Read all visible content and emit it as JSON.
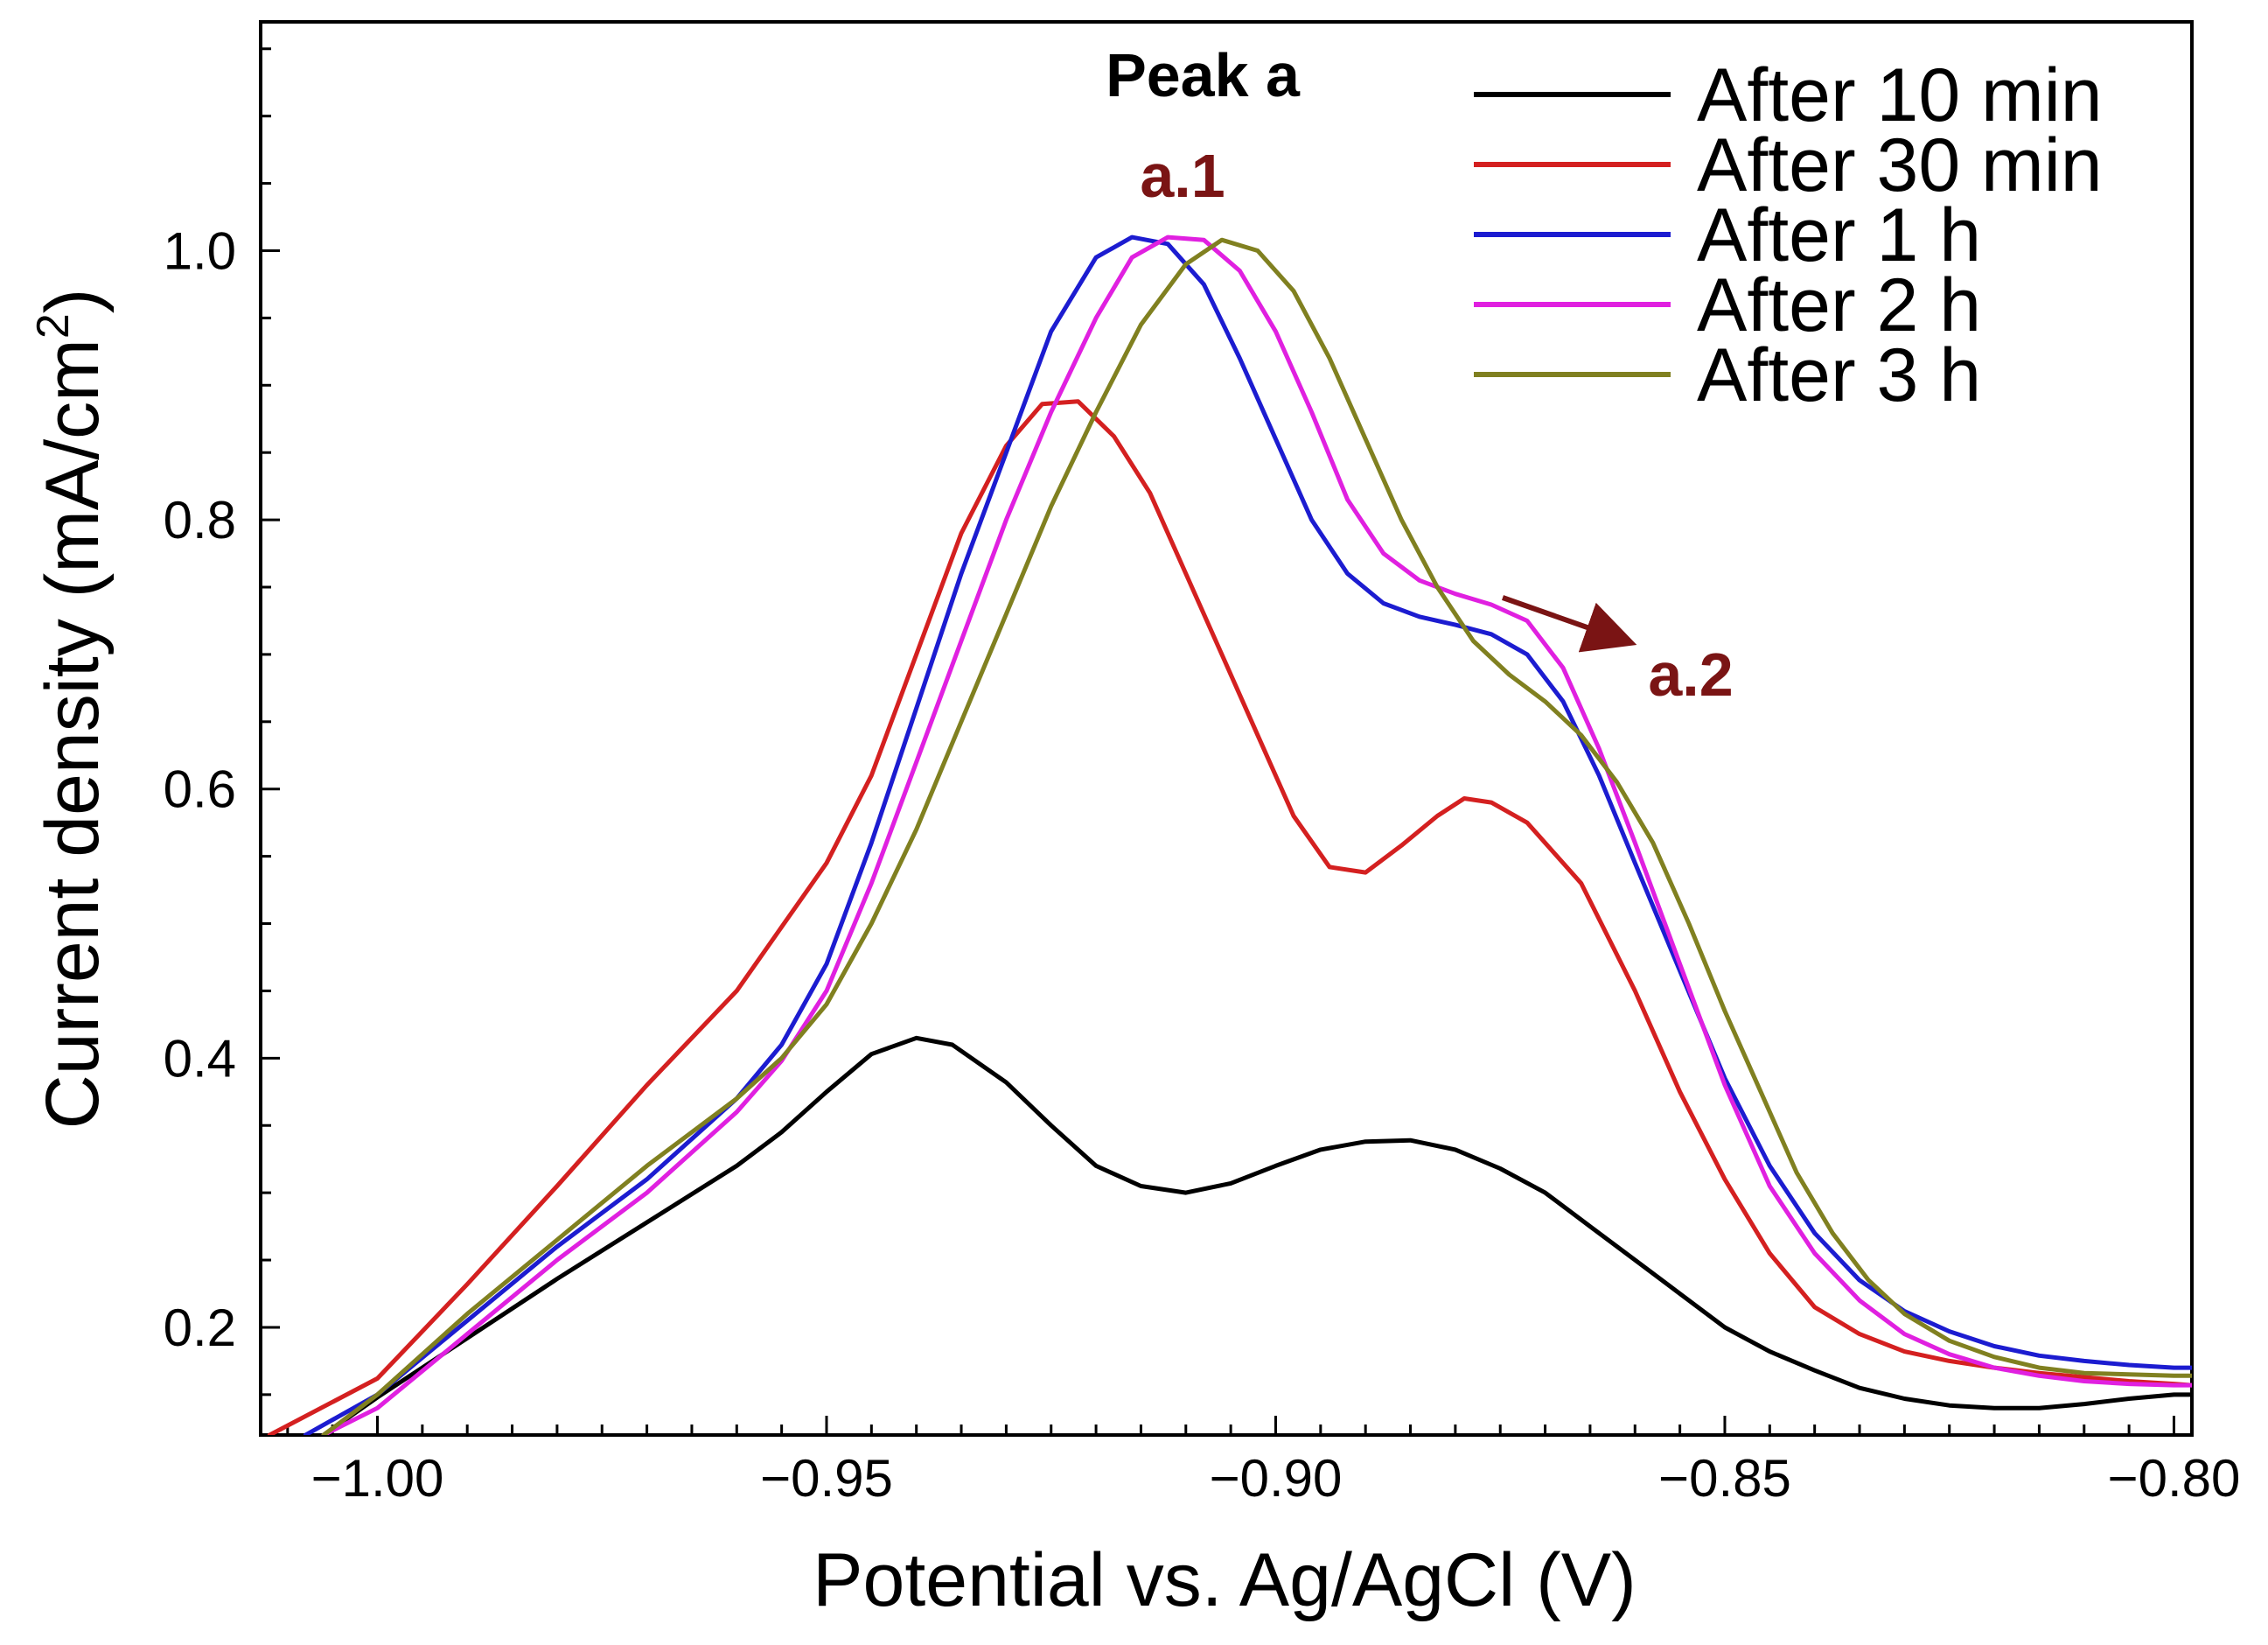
{
  "chart_data": {
    "type": "line",
    "xlabel": "Potential vs. Ag/AgCl (V)",
    "ylabel_main": "Current density (mA/cm",
    "ylabel_sup": "2",
    "ylabel_close": ")",
    "xlim": [
      -1.013,
      -0.798
    ],
    "ylim": [
      0.12,
      1.17
    ],
    "x_ticks": [
      -1.0,
      -0.95,
      -0.9,
      -0.85,
      -0.8
    ],
    "x_tick_labels": [
      "−1.00",
      "−0.95",
      "−0.90",
      "−0.85",
      "−0.80"
    ],
    "y_ticks": [
      0.2,
      0.4,
      0.6,
      0.8,
      1.0
    ],
    "y_tick_labels": [
      "0.2",
      "0.4",
      "0.6",
      "0.8",
      "1.0"
    ],
    "grid": false,
    "legend_position": "top-right",
    "annotations": {
      "peak_label": "Peak a",
      "a1": "a.1",
      "a2": "a.2"
    },
    "series": [
      {
        "name": "After 10 min",
        "color": "#000000",
        "points": [
          [
            -1.006,
            0.12
          ],
          [
            -1.0,
            0.148
          ],
          [
            -0.99,
            0.192
          ],
          [
            -0.98,
            0.236
          ],
          [
            -0.97,
            0.278
          ],
          [
            -0.96,
            0.32
          ],
          [
            -0.955,
            0.345
          ],
          [
            -0.95,
            0.375
          ],
          [
            -0.945,
            0.403
          ],
          [
            -0.94,
            0.415
          ],
          [
            -0.936,
            0.41
          ],
          [
            -0.93,
            0.382
          ],
          [
            -0.925,
            0.35
          ],
          [
            -0.92,
            0.32
          ],
          [
            -0.915,
            0.305
          ],
          [
            -0.91,
            0.3
          ],
          [
            -0.905,
            0.307
          ],
          [
            -0.9,
            0.32
          ],
          [
            -0.895,
            0.332
          ],
          [
            -0.89,
            0.338
          ],
          [
            -0.885,
            0.339
          ],
          [
            -0.88,
            0.332
          ],
          [
            -0.875,
            0.318
          ],
          [
            -0.87,
            0.3
          ],
          [
            -0.865,
            0.275
          ],
          [
            -0.86,
            0.25
          ],
          [
            -0.855,
            0.225
          ],
          [
            -0.85,
            0.2
          ],
          [
            -0.845,
            0.182
          ],
          [
            -0.84,
            0.168
          ],
          [
            -0.835,
            0.155
          ],
          [
            -0.83,
            0.147
          ],
          [
            -0.825,
            0.142
          ],
          [
            -0.82,
            0.14
          ],
          [
            -0.815,
            0.14
          ],
          [
            -0.81,
            0.143
          ],
          [
            -0.805,
            0.147
          ],
          [
            -0.8,
            0.15
          ],
          [
            -0.798,
            0.15
          ]
        ]
      },
      {
        "name": "After 30 min",
        "color": "#d42020",
        "points": [
          [
            -1.012,
            0.12
          ],
          [
            -1.0,
            0.162
          ],
          [
            -0.99,
            0.232
          ],
          [
            -0.98,
            0.305
          ],
          [
            -0.97,
            0.38
          ],
          [
            -0.96,
            0.45
          ],
          [
            -0.95,
            0.545
          ],
          [
            -0.945,
            0.61
          ],
          [
            -0.94,
            0.7
          ],
          [
            -0.935,
            0.79
          ],
          [
            -0.93,
            0.855
          ],
          [
            -0.926,
            0.886
          ],
          [
            -0.922,
            0.888
          ],
          [
            -0.918,
            0.862
          ],
          [
            -0.914,
            0.82
          ],
          [
            -0.91,
            0.76
          ],
          [
            -0.906,
            0.7
          ],
          [
            -0.902,
            0.64
          ],
          [
            -0.898,
            0.58
          ],
          [
            -0.894,
            0.542
          ],
          [
            -0.89,
            0.538
          ],
          [
            -0.886,
            0.558
          ],
          [
            -0.882,
            0.58
          ],
          [
            -0.879,
            0.593
          ],
          [
            -0.876,
            0.59
          ],
          [
            -0.872,
            0.575
          ],
          [
            -0.866,
            0.53
          ],
          [
            -0.86,
            0.45
          ],
          [
            -0.855,
            0.375
          ],
          [
            -0.85,
            0.31
          ],
          [
            -0.845,
            0.255
          ],
          [
            -0.84,
            0.215
          ],
          [
            -0.835,
            0.195
          ],
          [
            -0.83,
            0.182
          ],
          [
            -0.825,
            0.175
          ],
          [
            -0.82,
            0.17
          ],
          [
            -0.815,
            0.166
          ],
          [
            -0.81,
            0.163
          ],
          [
            -0.805,
            0.16
          ],
          [
            -0.8,
            0.158
          ],
          [
            -0.798,
            0.157
          ]
        ]
      },
      {
        "name": "After 1 h",
        "color": "#1c1cd0",
        "points": [
          [
            -1.008,
            0.12
          ],
          [
            -1.0,
            0.15
          ],
          [
            -0.99,
            0.205
          ],
          [
            -0.98,
            0.26
          ],
          [
            -0.97,
            0.31
          ],
          [
            -0.96,
            0.37
          ],
          [
            -0.955,
            0.41
          ],
          [
            -0.95,
            0.47
          ],
          [
            -0.945,
            0.56
          ],
          [
            -0.94,
            0.66
          ],
          [
            -0.935,
            0.76
          ],
          [
            -0.93,
            0.85
          ],
          [
            -0.925,
            0.94
          ],
          [
            -0.92,
            0.995
          ],
          [
            -0.916,
            1.01
          ],
          [
            -0.912,
            1.005
          ],
          [
            -0.908,
            0.975
          ],
          [
            -0.904,
            0.92
          ],
          [
            -0.9,
            0.86
          ],
          [
            -0.896,
            0.8
          ],
          [
            -0.892,
            0.76
          ],
          [
            -0.888,
            0.738
          ],
          [
            -0.884,
            0.728
          ],
          [
            -0.88,
            0.722
          ],
          [
            -0.876,
            0.715
          ],
          [
            -0.872,
            0.7
          ],
          [
            -0.868,
            0.665
          ],
          [
            -0.864,
            0.61
          ],
          [
            -0.86,
            0.545
          ],
          [
            -0.855,
            0.465
          ],
          [
            -0.85,
            0.385
          ],
          [
            -0.845,
            0.32
          ],
          [
            -0.84,
            0.27
          ],
          [
            -0.835,
            0.235
          ],
          [
            -0.83,
            0.212
          ],
          [
            -0.825,
            0.197
          ],
          [
            -0.82,
            0.186
          ],
          [
            -0.815,
            0.179
          ],
          [
            -0.81,
            0.175
          ],
          [
            -0.805,
            0.172
          ],
          [
            -0.8,
            0.17
          ],
          [
            -0.798,
            0.17
          ]
        ]
      },
      {
        "name": "After 2 h",
        "color": "#e020e0",
        "points": [
          [
            -1.006,
            0.12
          ],
          [
            -1.0,
            0.14
          ],
          [
            -0.99,
            0.195
          ],
          [
            -0.98,
            0.25
          ],
          [
            -0.97,
            0.3
          ],
          [
            -0.96,
            0.36
          ],
          [
            -0.955,
            0.398
          ],
          [
            -0.95,
            0.45
          ],
          [
            -0.945,
            0.53
          ],
          [
            -0.94,
            0.62
          ],
          [
            -0.935,
            0.71
          ],
          [
            -0.93,
            0.8
          ],
          [
            -0.925,
            0.88
          ],
          [
            -0.92,
            0.95
          ],
          [
            -0.916,
            0.995
          ],
          [
            -0.912,
            1.01
          ],
          [
            -0.908,
            1.008
          ],
          [
            -0.904,
            0.985
          ],
          [
            -0.9,
            0.94
          ],
          [
            -0.896,
            0.88
          ],
          [
            -0.892,
            0.815
          ],
          [
            -0.888,
            0.775
          ],
          [
            -0.884,
            0.755
          ],
          [
            -0.88,
            0.745
          ],
          [
            -0.876,
            0.737
          ],
          [
            -0.872,
            0.725
          ],
          [
            -0.868,
            0.69
          ],
          [
            -0.864,
            0.63
          ],
          [
            -0.86,
            0.56
          ],
          [
            -0.855,
            0.47
          ],
          [
            -0.85,
            0.38
          ],
          [
            -0.845,
            0.305
          ],
          [
            -0.84,
            0.255
          ],
          [
            -0.835,
            0.22
          ],
          [
            -0.83,
            0.195
          ],
          [
            -0.825,
            0.18
          ],
          [
            -0.82,
            0.17
          ],
          [
            -0.815,
            0.164
          ],
          [
            -0.81,
            0.16
          ],
          [
            -0.805,
            0.158
          ],
          [
            -0.8,
            0.157
          ],
          [
            -0.798,
            0.157
          ]
        ]
      },
      {
        "name": "After 3 h",
        "color": "#808020",
        "points": [
          [
            -1.006,
            0.12
          ],
          [
            -1.0,
            0.15
          ],
          [
            -0.99,
            0.21
          ],
          [
            -0.98,
            0.265
          ],
          [
            -0.97,
            0.32
          ],
          [
            -0.96,
            0.37
          ],
          [
            -0.955,
            0.4
          ],
          [
            -0.95,
            0.44
          ],
          [
            -0.945,
            0.5
          ],
          [
            -0.94,
            0.57
          ],
          [
            -0.935,
            0.65
          ],
          [
            -0.93,
            0.73
          ],
          [
            -0.925,
            0.81
          ],
          [
            -0.92,
            0.88
          ],
          [
            -0.915,
            0.945
          ],
          [
            -0.91,
            0.99
          ],
          [
            -0.906,
            1.008
          ],
          [
            -0.902,
            1.0
          ],
          [
            -0.898,
            0.97
          ],
          [
            -0.894,
            0.92
          ],
          [
            -0.89,
            0.86
          ],
          [
            -0.886,
            0.8
          ],
          [
            -0.882,
            0.75
          ],
          [
            -0.878,
            0.71
          ],
          [
            -0.874,
            0.685
          ],
          [
            -0.87,
            0.665
          ],
          [
            -0.866,
            0.64
          ],
          [
            -0.862,
            0.605
          ],
          [
            -0.858,
            0.56
          ],
          [
            -0.854,
            0.5
          ],
          [
            -0.85,
            0.435
          ],
          [
            -0.846,
            0.375
          ],
          [
            -0.842,
            0.315
          ],
          [
            -0.838,
            0.27
          ],
          [
            -0.834,
            0.235
          ],
          [
            -0.83,
            0.21
          ],
          [
            -0.825,
            0.19
          ],
          [
            -0.82,
            0.178
          ],
          [
            -0.815,
            0.17
          ],
          [
            -0.81,
            0.166
          ],
          [
            -0.805,
            0.165
          ],
          [
            -0.8,
            0.164
          ],
          [
            -0.798,
            0.164
          ]
        ]
      }
    ]
  },
  "annotation_colors": {
    "peak_label": "#000000",
    "a_labels": "#7a1414",
    "arrow": "#7a1414"
  }
}
